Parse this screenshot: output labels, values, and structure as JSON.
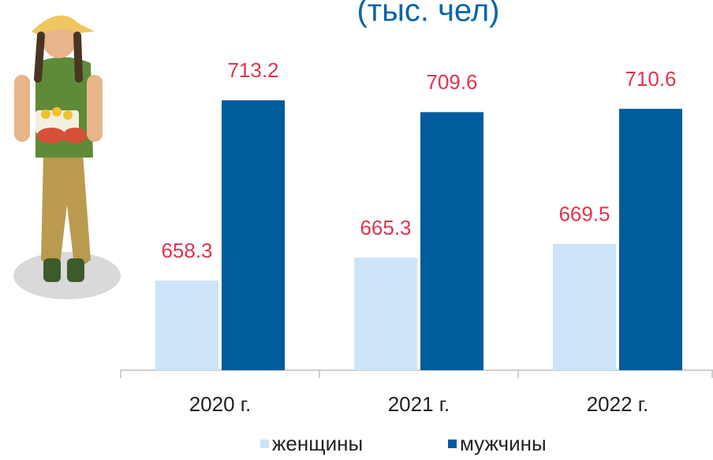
{
  "chart_data": {
    "type": "bar",
    "title": "(тыс. чел)",
    "categories": [
      "2020 г.",
      "2021 г.",
      "2022 г."
    ],
    "series": [
      {
        "name": "женщины",
        "color": "#cde3f7",
        "values": [
          658.3,
          665.3,
          669.5
        ]
      },
      {
        "name": "мужчины",
        "color": "#005c9c",
        "values": [
          713.2,
          709.6,
          710.6
        ]
      }
    ],
    "ylim": [
      631,
      720
    ],
    "value_label_color": "#e0344f",
    "legend": "bottom"
  }
}
